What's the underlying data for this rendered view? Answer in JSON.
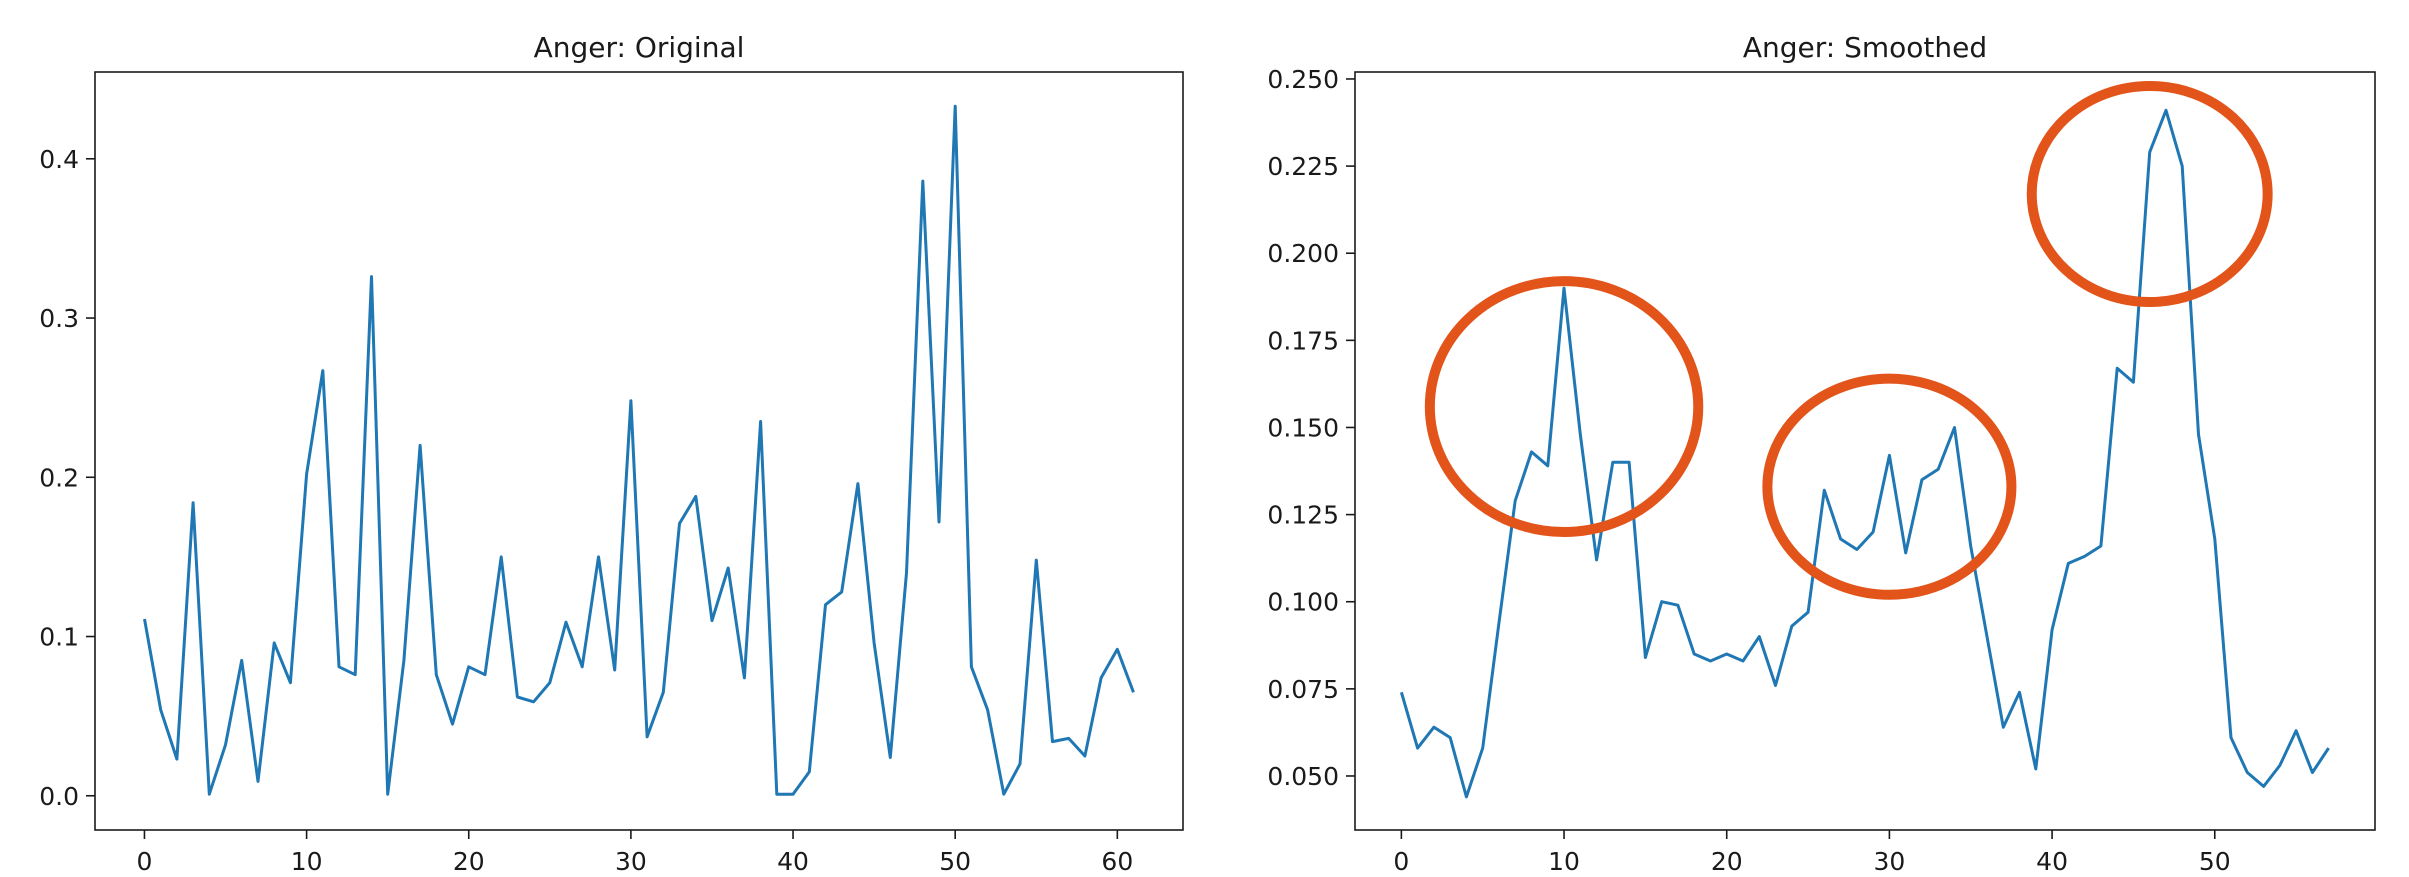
{
  "chart_data": [
    {
      "type": "line",
      "title": "Anger:  Original",
      "xlabel": "",
      "ylabel": "",
      "xlim": [
        -3.05,
        64.05
      ],
      "ylim": [
        -0.0215,
        0.4545
      ],
      "xticks": [
        0,
        10,
        20,
        30,
        40,
        50,
        60
      ],
      "xtick_labels": [
        "0",
        "10",
        "20",
        "30",
        "40",
        "50",
        "60"
      ],
      "yticks": [
        0.0,
        0.1,
        0.2,
        0.3,
        0.4
      ],
      "ytick_labels": [
        "0.0",
        "0.1",
        "0.2",
        "0.3",
        "0.4"
      ],
      "grid": false,
      "color": "#1f77b4",
      "series": [
        {
          "x": [
            0,
            1,
            2,
            3,
            4,
            5,
            6,
            7,
            8,
            9,
            10,
            11,
            12,
            13,
            14,
            15,
            16,
            17,
            18,
            19,
            20,
            21,
            22,
            23,
            24,
            25,
            26,
            27,
            28,
            29,
            30,
            31,
            32,
            33,
            34,
            35,
            36,
            37,
            38,
            39,
            40,
            41,
            42,
            43,
            44,
            45,
            46,
            47,
            48,
            49,
            50,
            51,
            52,
            53,
            54,
            55,
            56,
            57,
            58,
            59,
            60,
            61
          ],
          "values": [
            0.111,
            0.054,
            0.023,
            0.184,
            0.001,
            0.032,
            0.085,
            0.009,
            0.096,
            0.071,
            0.202,
            0.267,
            0.081,
            0.076,
            0.326,
            0.001,
            0.085,
            0.22,
            0.076,
            0.045,
            0.081,
            0.076,
            0.15,
            0.062,
            0.059,
            0.071,
            0.109,
            0.081,
            0.15,
            0.079,
            0.248,
            0.037,
            0.065,
            0.171,
            0.188,
            0.11,
            0.143,
            0.074,
            0.235,
            0.001,
            0.001,
            0.015,
            0.12,
            0.128,
            0.196,
            0.096,
            0.024,
            0.14,
            0.386,
            0.172,
            0.433,
            0.081,
            0.054,
            0.001,
            0.02,
            0.148,
            0.034,
            0.036,
            0.025,
            0.074,
            0.092,
            0.065
          ]
        }
      ]
    },
    {
      "type": "line",
      "title": "Anger:  Smoothed",
      "xlabel": "",
      "ylabel": "",
      "xlim": [
        -2.85,
        59.85
      ],
      "ylim": [
        0.0345,
        0.252
      ],
      "xticks": [
        0,
        10,
        20,
        30,
        40,
        50
      ],
      "xtick_labels": [
        "0",
        "10",
        "20",
        "30",
        "40",
        "50"
      ],
      "yticks": [
        0.05,
        0.075,
        0.1,
        0.125,
        0.15,
        0.175,
        0.2,
        0.225,
        0.25
      ],
      "ytick_labels": [
        "0.050",
        "0.075",
        "0.100",
        "0.125",
        "0.150",
        "0.175",
        "0.200",
        "0.225",
        "0.250"
      ],
      "grid": false,
      "color": "#1f77b4",
      "annotation_color": "#e2541a",
      "series": [
        {
          "x": [
            0,
            1,
            2,
            3,
            4,
            5,
            6,
            7,
            8,
            9,
            10,
            11,
            12,
            13,
            14,
            15,
            16,
            17,
            18,
            19,
            20,
            21,
            22,
            23,
            24,
            25,
            26,
            27,
            28,
            29,
            30,
            31,
            32,
            33,
            34,
            35,
            36,
            37,
            38,
            39,
            40,
            41,
            42,
            43,
            44,
            45,
            46,
            47,
            48,
            49,
            50,
            51,
            52,
            53,
            54,
            55,
            56,
            57
          ],
          "values": [
            0.074,
            0.058,
            0.064,
            0.061,
            0.044,
            0.058,
            0.094,
            0.129,
            0.143,
            0.139,
            0.19,
            0.148,
            0.112,
            0.14,
            0.14,
            0.084,
            0.1,
            0.099,
            0.085,
            0.083,
            0.085,
            0.083,
            0.09,
            0.076,
            0.093,
            0.097,
            0.132,
            0.118,
            0.115,
            0.12,
            0.142,
            0.114,
            0.135,
            0.138,
            0.15,
            0.116,
            0.09,
            0.064,
            0.074,
            0.052,
            0.092,
            0.111,
            0.113,
            0.116,
            0.167,
            0.163,
            0.229,
            0.241,
            0.225,
            0.148,
            0.118,
            0.061,
            0.051,
            0.047,
            0.053,
            0.063,
            0.051,
            0.058
          ]
        }
      ],
      "annotations": [
        {
          "shape": "ellipse",
          "center": [
            10,
            0.156
          ],
          "span_x": 16.5,
          "span_y": 0.072
        },
        {
          "shape": "ellipse",
          "center": [
            30,
            0.133
          ],
          "span_x": 15.0,
          "span_y": 0.062
        },
        {
          "shape": "ellipse",
          "center": [
            46,
            0.217
          ],
          "span_x": 14.5,
          "span_y": 0.062
        }
      ]
    }
  ]
}
